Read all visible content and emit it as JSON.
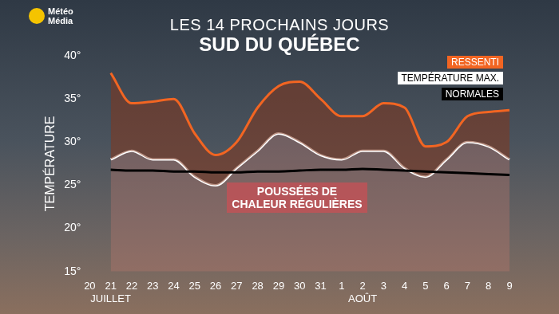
{
  "chart_data": {
    "type": "line",
    "logo": [
      "Météo",
      "Média"
    ],
    "title": "LES 14 PROCHAINS JOURS",
    "subtitle": "SUD DU QUÉBEC",
    "y_label": "TEMPÉRATURE",
    "annotations": [
      "POUSSÉES DE CHALEUR RÉGULIÈRES"
    ],
    "categories": [
      "20",
      [
        "21",
        "JUILLET"
      ],
      "22",
      "23",
      "24",
      "25",
      "26",
      "27",
      "28",
      "29",
      "30",
      "31",
      "1",
      [
        "2",
        "AOÛT"
      ],
      "3",
      "4",
      "5",
      "6",
      "7",
      "8",
      "9"
    ],
    "series": [
      {
        "name": "RESSENTI",
        "color": "#f26522",
        "values": [
          null,
          38,
          34.5,
          34.7,
          35,
          31,
          28.5,
          30,
          34,
          36.5,
          37,
          35,
          33,
          33,
          34.5,
          34,
          29.5,
          30,
          33,
          33.5,
          33.7
        ]
      },
      {
        "name": "TEMPÉRATURE MAX.",
        "color": "#ffffff",
        "values": [
          null,
          28,
          29,
          28,
          28,
          26,
          25,
          27,
          29,
          31,
          30,
          28.5,
          28,
          29,
          29,
          27,
          26,
          28,
          30,
          29.5,
          28
        ]
      },
      {
        "name": "NORMALES",
        "color": "#000000",
        "values": [
          null,
          26.8,
          26.7,
          26.7,
          26.6,
          26.6,
          26.5,
          26.5,
          26.6,
          26.6,
          26.7,
          26.8,
          26.8,
          26.9,
          26.8,
          26.7,
          26.6,
          26.5,
          26.4,
          26.3,
          26.2
        ]
      }
    ],
    "ylim": [
      15,
      40
    ],
    "yticks": [
      {
        "value": 15,
        "label": "15°"
      },
      {
        "value": 20,
        "label": "20°"
      },
      {
        "value": 25,
        "label": "25°"
      },
      {
        "value": 30,
        "label": "30°"
      },
      {
        "value": 35,
        "label": "35°"
      },
      {
        "value": 40,
        "label": "40°"
      }
    ],
    "grid": false,
    "legend": "top-right"
  }
}
